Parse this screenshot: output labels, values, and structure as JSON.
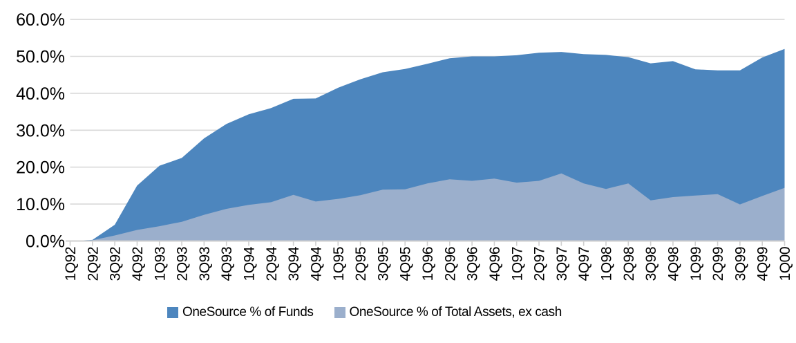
{
  "chart_data": {
    "type": "area",
    "overlap": true,
    "title": "",
    "xlabel": "",
    "ylabel": "",
    "ylim": [
      0,
      60
    ],
    "grid": true,
    "legend_position": "bottom",
    "y_ticks": [
      "0.0%",
      "10.0%",
      "20.0%",
      "30.0%",
      "40.0%",
      "50.0%",
      "60.0%"
    ],
    "categories": [
      "1Q92",
      "2Q92",
      "3Q92",
      "4Q92",
      "1Q93",
      "2Q93",
      "3Q93",
      "4Q93",
      "1Q94",
      "2Q94",
      "3Q94",
      "4Q94",
      "1Q95",
      "2Q95",
      "3Q95",
      "4Q95",
      "1Q96",
      "2Q96",
      "3Q96",
      "4Q96",
      "1Q97",
      "2Q97",
      "3Q97",
      "4Q97",
      "1Q98",
      "2Q98",
      "3Q98",
      "4Q98",
      "1Q99",
      "2Q99",
      "3Q99",
      "4Q99",
      "1Q00"
    ],
    "series": [
      {
        "name": "OneSource % of Funds",
        "color": "#4D86BE",
        "values": [
          0,
          0.3,
          4.4,
          15.0,
          20.4,
          22.5,
          27.8,
          31.7,
          34.3,
          36.0,
          38.5,
          38.6,
          41.5,
          43.8,
          45.7,
          46.6,
          48.0,
          49.5,
          50.0,
          50.0,
          50.3,
          51.0,
          51.2,
          50.6,
          50.4,
          49.8,
          48.1,
          48.7,
          46.5,
          46.2,
          46.2,
          49.7,
          52.0
        ]
      },
      {
        "name": "OneSource % of Total Assets, ex cash",
        "color": "#9BAFCC",
        "values": [
          0,
          0.2,
          1.5,
          3.0,
          4.0,
          5.2,
          7.1,
          8.7,
          9.8,
          10.5,
          12.5,
          10.7,
          11.4,
          12.4,
          13.9,
          14.0,
          15.6,
          16.7,
          16.3,
          16.9,
          15.8,
          16.3,
          18.3,
          15.6,
          14.1,
          15.6,
          11.0,
          11.9,
          12.3,
          12.7,
          9.9,
          12.2,
          14.4
        ]
      }
    ]
  },
  "colors": {
    "gridline": "#D9D9D9",
    "axis": "#CFCFCF",
    "text": "#000000",
    "background": "#FFFFFF"
  }
}
